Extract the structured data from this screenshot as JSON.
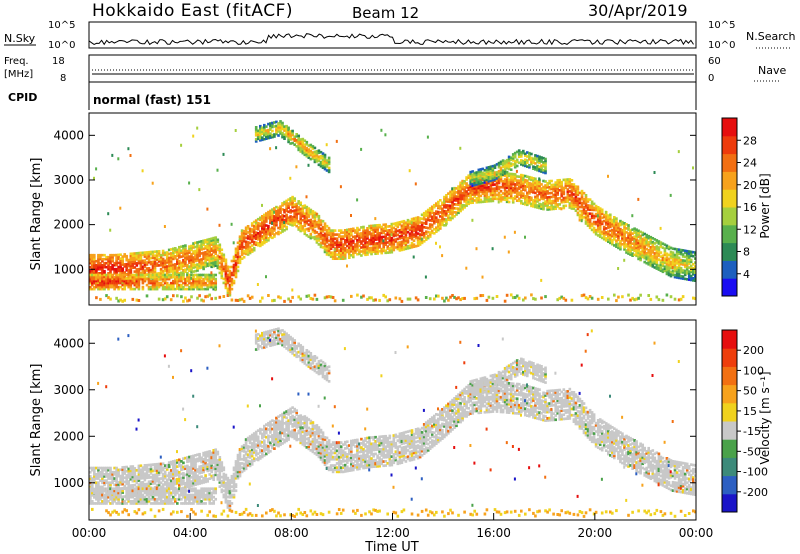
{
  "header": {
    "station": "Hokkaido East (fitACF)",
    "beam": "Beam 12",
    "date": "30/Apr/2019"
  },
  "top_panels": {
    "nsky": {
      "label": "N.Sky",
      "ticks": [
        "10^5",
        "10^0"
      ]
    },
    "nsearch": {
      "label": "N.Search",
      "ticks": [
        "10^5",
        "10^0"
      ]
    },
    "freq": {
      "label": "Freq.",
      "unit": "[MHz]",
      "ticks": [
        "18",
        "8"
      ]
    },
    "nave": {
      "label": "Nave",
      "ticks": [
        "60",
        "0"
      ]
    },
    "cpid": {
      "label": "CPID",
      "value": "normal (fast) 151"
    }
  },
  "chart_data": [
    {
      "type": "heatmap",
      "name": "power",
      "ylabel": "Slant Range [km]",
      "xlabel": "Time UT",
      "xlim": [
        0,
        24
      ],
      "ylim": [
        200,
        4500
      ],
      "yticks": [
        1000,
        2000,
        3000,
        4000
      ],
      "xticks": [
        "00:00",
        "04:00",
        "08:00",
        "12:00",
        "16:00",
        "20:00",
        "00:00"
      ],
      "colorbar": {
        "label": "Power [dB]",
        "ticks": [
          "28",
          "24",
          "20",
          "16",
          "12",
          "8",
          "4"
        ],
        "colors": [
          "#1a0df2",
          "#1c5fbf",
          "#2c8a55",
          "#58b04c",
          "#a5cf3e",
          "#f0d21e",
          "#f7a21c",
          "#f26f12",
          "#ee3b0c",
          "#e60e0e"
        ]
      },
      "bands": [
        {
          "x": [
            0.0,
            1.0,
            2.0,
            3.0,
            4.0,
            5.0,
            5.5,
            6.0,
            7.0,
            8.0,
            9.0,
            9.5,
            10.0,
            11.0,
            12.0,
            13.0,
            14.0,
            15.0,
            16.0,
            17.0,
            18.0,
            19.0,
            20.0,
            21.0,
            22.0,
            23.0,
            24.0
          ],
          "center": [
            1000,
            1000,
            1050,
            1100,
            1250,
            1400,
            700,
            1550,
            1950,
            2300,
            1900,
            1550,
            1550,
            1650,
            1700,
            1850,
            2300,
            2800,
            2850,
            2800,
            2650,
            2700,
            2100,
            1750,
            1450,
            1150,
            1050
          ],
          "power": [
            28,
            28,
            26,
            24,
            24,
            22,
            28,
            26,
            27,
            26,
            24,
            27,
            27,
            27,
            27,
            27,
            26,
            26,
            26,
            25,
            24,
            26,
            26,
            24,
            22,
            20,
            16
          ]
        },
        {
          "x": [
            0.0,
            1.0,
            2.0,
            3.0,
            4.0,
            5.0
          ],
          "center": [
            700,
            700,
            700,
            700,
            700,
            700
          ],
          "power": [
            28,
            28,
            26,
            24,
            24,
            22
          ]
        },
        {
          "x": [
            6.5,
            7.5,
            8.5,
            9.5
          ],
          "center": [
            4000,
            4150,
            3700,
            3300
          ],
          "power": [
            18,
            20,
            22,
            18
          ]
        },
        {
          "x": [
            15.0,
            16.0,
            17.0,
            18.0
          ],
          "center": [
            3000,
            3150,
            3500,
            3300
          ],
          "power": [
            16,
            18,
            20,
            18
          ]
        }
      ]
    },
    {
      "type": "heatmap",
      "name": "velocity",
      "ylabel": "Slant Range [km]",
      "xlabel": "Time UT",
      "xlim": [
        0,
        24
      ],
      "ylim": [
        200,
        4500
      ],
      "yticks": [
        1000,
        2000,
        3000,
        4000
      ],
      "xticks": [
        "00:00",
        "04:00",
        "08:00",
        "12:00",
        "16:00",
        "20:00",
        "00:00"
      ],
      "colorbar": {
        "label": "Velocity [m s⁻¹]",
        "ticks": [
          "200",
          "100",
          "50",
          "15",
          "-15",
          "-50",
          "-100",
          "-200"
        ],
        "colors": [
          "#1a14c8",
          "#2c5fc2",
          "#3c8a7a",
          "#4aa24a",
          "#c8c8c8",
          "#f0d21e",
          "#f7a21c",
          "#f27012",
          "#ee3e0c",
          "#e60e0e"
        ]
      },
      "fill_color": "#c8c8c8"
    }
  ]
}
